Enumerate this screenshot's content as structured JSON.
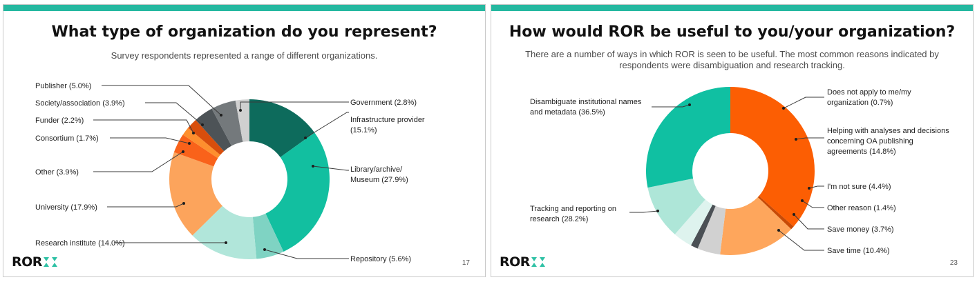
{
  "brand": {
    "bar_color": "#25b8a0",
    "logo_text": "ROR",
    "logo_mark_color": "#2fc1a5"
  },
  "slides": [
    {
      "title": "What type of organization do you represent?",
      "subtitle": "Survey respondents represented a range of different organizations.",
      "page_number": "17"
    },
    {
      "title": "How would ROR be useful to you/your organization?",
      "subtitle": "There are a number of ways in which ROR is seen to be useful. The most common reasons indicated by respondents were disambiguation and research tracking.",
      "page_number": "23"
    }
  ],
  "chart_data": [
    {
      "type": "pie",
      "donut": true,
      "slices": [
        {
          "label": "Infrastructure provider (15.1%)",
          "value": 15.1,
          "color": "#0d6b5c"
        },
        {
          "label": "Library/archive/ Museum (27.9%)",
          "value": 27.9,
          "color": "#12bfa0"
        },
        {
          "label": "Repository (5.6%)",
          "value": 5.6,
          "color": "#7fd3c3"
        },
        {
          "label": "Research institute (14.0%)",
          "value": 14.0,
          "color": "#b1e6da"
        },
        {
          "label": "University (17.9%)",
          "value": 17.9,
          "color": "#fca45c"
        },
        {
          "label": "Other (3.9%)",
          "value": 3.9,
          "color": "#f9621a"
        },
        {
          "label": "Consortium (1.7%)",
          "value": 1.7,
          "color": "#fe8f2e"
        },
        {
          "label": "Funder (2.2%)",
          "value": 2.2,
          "color": "#d84e0c"
        },
        {
          "label": "Society/association (3.9%)",
          "value": 3.9,
          "color": "#4d5357"
        },
        {
          "label": "Publisher (5.0%)",
          "value": 5.0,
          "color": "#74797c"
        },
        {
          "label": "Government (2.8%)",
          "value": 2.8,
          "color": "#d0d0d0"
        }
      ]
    },
    {
      "type": "pie",
      "donut": true,
      "slices": [
        {
          "label": "Disambiguate institutional names and metadata (36.5%)",
          "value": 36.5,
          "color": "#fc5e03"
        },
        {
          "label": "Does not apply to me/my organization (0.7%)",
          "value": 0.7,
          "color": "#c74a06"
        },
        {
          "label": "Helping with analyses and decisions concerning OA publishing agreements (14.8%)",
          "value": 14.8,
          "color": "#fea65c"
        },
        {
          "label": "I'm not sure (4.4%)",
          "value": 4.4,
          "color": "#d1d1d1"
        },
        {
          "label": "Other reason (1.4%)",
          "value": 1.4,
          "color": "#4b5055"
        },
        {
          "label": "Save money (3.7%)",
          "value": 3.7,
          "color": "#def3ee"
        },
        {
          "label": "Save time (10.4%)",
          "value": 10.4,
          "color": "#aee6d8"
        },
        {
          "label": "Tracking and reporting on research (28.2%)",
          "value": 28.2,
          "color": "#10c0a2"
        }
      ]
    }
  ]
}
